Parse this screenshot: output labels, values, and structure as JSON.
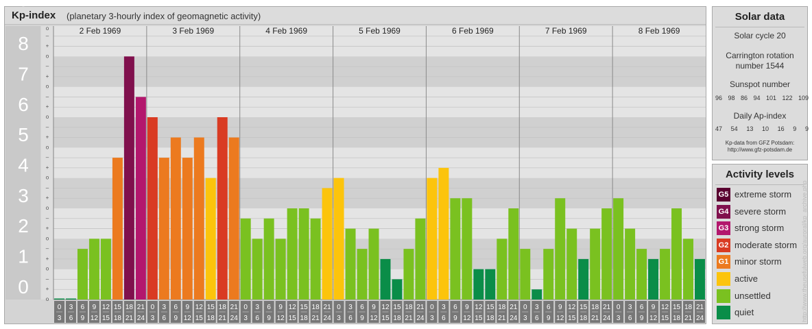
{
  "header": {
    "title": "Kp-index",
    "subtitle": "(planetary 3-hourly index of geomagnetic activity)"
  },
  "solar": {
    "title": "Solar data",
    "solar_cycle": "Solar cycle 20",
    "carrington_line1": "Carrington rotation",
    "carrington_line2": "number 1544",
    "sunspot_label": "Sunspot number",
    "sunspot_values": [
      "96",
      "98",
      "86",
      "94",
      "101",
      "122",
      "109"
    ],
    "ap_label": "Daily Ap-index",
    "ap_values": [
      "47",
      "54",
      "13",
      "10",
      "16",
      "9",
      "9"
    ],
    "source_line1": "Kp-data from GFZ Potsdam:",
    "source_line2": "http://www.gfz-potsdam.de"
  },
  "legend": {
    "title": "Activity levels",
    "items": [
      {
        "code": "G5",
        "label": "extreme storm",
        "color": "#5a0030"
      },
      {
        "code": "G4",
        "label": "severe storm",
        "color": "#80104d"
      },
      {
        "code": "G3",
        "label": "strong storm",
        "color": "#b3176d"
      },
      {
        "code": "G2",
        "label": "moderate storm",
        "color": "#d93b23"
      },
      {
        "code": "G1",
        "label": "minor storm",
        "color": "#ec7a1f"
      },
      {
        "code": "",
        "label": "active",
        "color": "#fcc40c"
      },
      {
        "code": "",
        "label": "unsettled",
        "color": "#7ac120"
      },
      {
        "code": "",
        "label": "quiet",
        "color": "#0a8d48"
      }
    ]
  },
  "watermark": "http://www.theusefulweb.org/auroral/kp_archive.php",
  "chart_data": {
    "type": "bar",
    "title": "Kp-index",
    "ylim": [
      0,
      9
    ],
    "y_ticks": [
      "0",
      "1",
      "2",
      "3",
      "4",
      "5",
      "6",
      "7",
      "8",
      "9"
    ],
    "minor_tick_labels": [
      "o",
      "+",
      "–"
    ],
    "days": [
      "2 Feb 1969",
      "3 Feb 1969",
      "4 Feb 1969",
      "5 Feb 1969",
      "6 Feb 1969",
      "7 Feb 1969",
      "8 Feb 1969"
    ],
    "interval_start": [
      "0",
      "3",
      "6",
      "9",
      "12",
      "15",
      "18",
      "21"
    ],
    "interval_end": [
      "3",
      "6",
      "9",
      "12",
      "15",
      "18",
      "21",
      "24"
    ],
    "level_colors": {
      "quiet": "#0a8d48",
      "unsettled": "#7ac120",
      "active": "#fcc40c",
      "G1": "#ec7a1f",
      "G2": "#d93b23",
      "G3": "#b3176d",
      "G4": "#80104d",
      "G5": "#5a0030"
    },
    "values": [
      0,
      0,
      1.667,
      2,
      2,
      4.667,
      8,
      6.667,
      6,
      4.667,
      5.333,
      4.667,
      5.333,
      4,
      6,
      5.333,
      2.667,
      2,
      2.667,
      2,
      3,
      3,
      2.667,
      3.667,
      4,
      2.333,
      1.667,
      2.333,
      1.333,
      0.667,
      1.667,
      2.667,
      4,
      4.333,
      3.333,
      3.333,
      1,
      1,
      2,
      3,
      1.667,
      0.333,
      1.667,
      3.333,
      2.333,
      1.333,
      2.333,
      3,
      3.333,
      2.333,
      1.667,
      1.333,
      1.667,
      3,
      2,
      1.333
    ]
  }
}
